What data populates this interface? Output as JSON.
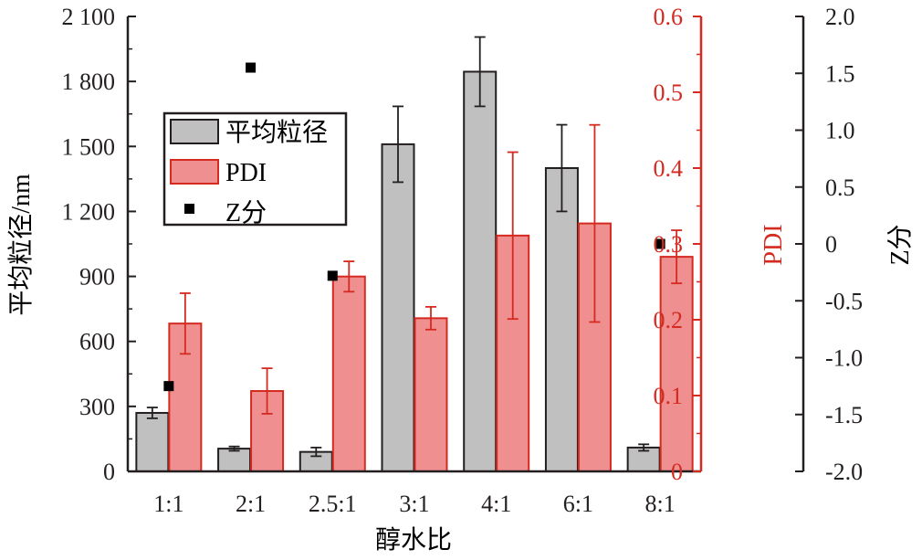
{
  "chart_data": {
    "type": "bar",
    "categories": [
      "1:1",
      "2:1",
      "2.5:1",
      "3:1",
      "4:1",
      "6:1",
      "8:1"
    ],
    "xlabel": "醇水比",
    "series": [
      {
        "name": "平均粒径",
        "axis": "left",
        "color": "#c0c0c0",
        "values": [
          270,
          105,
          90,
          1510,
          1845,
          1400,
          110
        ],
        "errors": [
          25,
          10,
          20,
          175,
          160,
          200,
          15
        ]
      },
      {
        "name": "PDI",
        "axis": "right",
        "color": "#f08f8f",
        "values": [
          0.195,
          0.106,
          0.257,
          0.202,
          0.311,
          0.327,
          0.283
        ],
        "errors": [
          0.04,
          0.03,
          0.02,
          0.015,
          0.11,
          0.13,
          0.035
        ]
      },
      {
        "name": "Z分",
        "axis": "far-right",
        "type": "scatter",
        "color": "#000000",
        "values": [
          -1.25,
          1.55,
          -0.28,
          null,
          null,
          null,
          0.0
        ]
      }
    ],
    "axes": {
      "left": {
        "label": "平均粒径/nm",
        "ylim": [
          0,
          2100
        ],
        "ticks": [
          0,
          300,
          600,
          900,
          1200,
          1500,
          1800,
          2100
        ],
        "tick_labels": [
          "0",
          "300",
          "600",
          "900",
          "1 200",
          "1 500",
          "1 800",
          "2 100"
        ],
        "color": "#231f20"
      },
      "right": {
        "label": "PDI",
        "ylim": [
          0,
          0.6
        ],
        "ticks": [
          0,
          0.1,
          0.2,
          0.3,
          0.4,
          0.5,
          0.6
        ],
        "tick_labels": [
          "0",
          "0.1",
          "0.2",
          "0.3",
          "0.4",
          "0.5",
          "0.6"
        ],
        "color": "#d42a20"
      },
      "far_right": {
        "label": "Z分",
        "ylim": [
          -2.0,
          2.0
        ],
        "ticks": [
          -2.0,
          -1.5,
          -1.0,
          -0.5,
          0,
          0.5,
          1.0,
          1.5,
          2.0
        ],
        "tick_labels": [
          "-2.0",
          "-1.5",
          "-1.0",
          "-0.5",
          "0",
          "0.5",
          "1.0",
          "1.5",
          "2.0"
        ],
        "color": "#231f20"
      }
    },
    "legend": {
      "placement": "top-left",
      "entries": [
        "平均粒径",
        "PDI",
        "Z分"
      ]
    }
  }
}
